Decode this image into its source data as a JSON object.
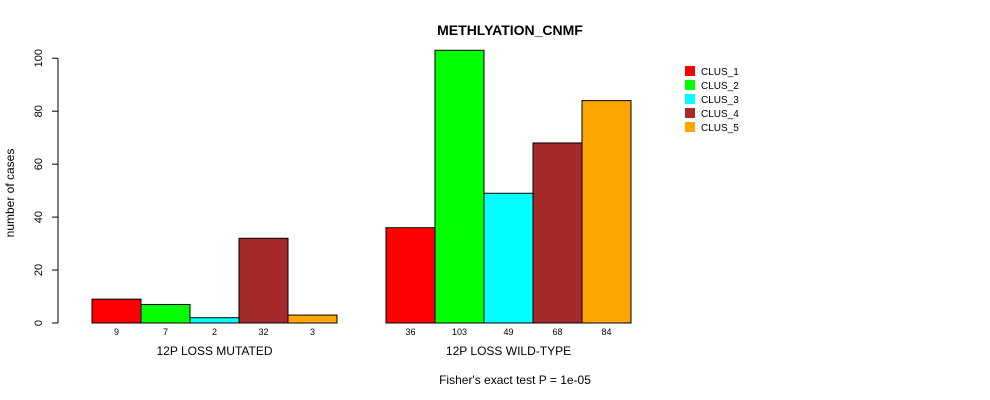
{
  "chart_data": {
    "type": "bar",
    "title": "METHLYATION_CNMF",
    "ylabel": "number of cases",
    "xlabel": "",
    "ylim": [
      0,
      105
    ],
    "yticks": [
      0,
      20,
      40,
      60,
      80,
      100
    ],
    "groups": [
      "12P LOSS MUTATED",
      "12P LOSS WILD-TYPE"
    ],
    "series": [
      {
        "name": "CLUS_1",
        "color": "#ff0000",
        "values": [
          9,
          36
        ]
      },
      {
        "name": "CLUS_2",
        "color": "#00ff00",
        "values": [
          7,
          103
        ]
      },
      {
        "name": "CLUS_3",
        "color": "#00ffff",
        "values": [
          2,
          49
        ]
      },
      {
        "name": "CLUS_4",
        "color": "#a52a2a",
        "values": [
          32,
          68
        ]
      },
      {
        "name": "CLUS_5",
        "color": "#ffa500",
        "values": [
          3,
          84
        ]
      }
    ],
    "legend_position": "top-right",
    "footnote": "Fisher's exact test P = 1e-05"
  }
}
